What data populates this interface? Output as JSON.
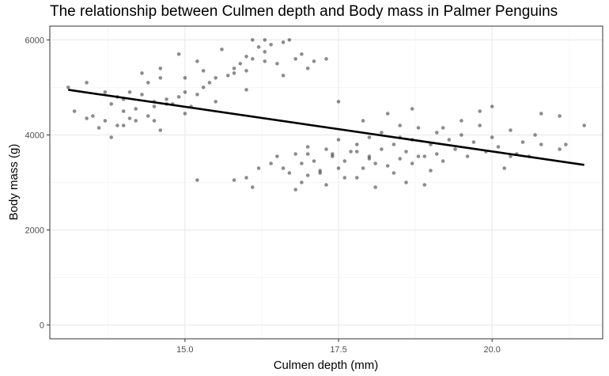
{
  "chart_data": {
    "type": "scatter",
    "title": "The relationship between Culmen depth and Body mass in Palmer Penguins",
    "xlabel": "Culmen depth (mm)",
    "ylabel": "Body mass (g)",
    "xlim": [
      12.8,
      21.8
    ],
    "ylim": [
      -290,
      6290
    ],
    "xticks": [
      15.0,
      17.5,
      20.0
    ],
    "xtick_labels": [
      "15.0",
      "17.5",
      "20.0"
    ],
    "yticks": [
      0,
      2000,
      4000,
      6000
    ],
    "ytick_labels": [
      "0",
      "2000",
      "4000",
      "6000"
    ],
    "grid": true,
    "legend": "none",
    "colors": {
      "point": "#000000",
      "line": "#000000",
      "grid_major": "#ebebeb",
      "grid_minor": "#f5f5f5",
      "panel_border": "#333333"
    },
    "point_alpha": 0.45,
    "trend_line": {
      "x": [
        13.1,
        21.5
      ],
      "y": [
        4950,
        3370
      ]
    },
    "points": [
      [
        13.1,
        5000
      ],
      [
        13.2,
        4500
      ],
      [
        13.4,
        5100
      ],
      [
        13.5,
        4400
      ],
      [
        13.6,
        4150
      ],
      [
        13.7,
        4900
      ],
      [
        13.7,
        4300
      ],
      [
        13.8,
        3950
      ],
      [
        13.8,
        4650
      ],
      [
        13.9,
        4200
      ],
      [
        14.0,
        4750
      ],
      [
        14.0,
        4500
      ],
      [
        14.1,
        4900
      ],
      [
        14.2,
        4300
      ],
      [
        14.2,
        4550
      ],
      [
        14.3,
        4850
      ],
      [
        14.4,
        4400
      ],
      [
        14.5,
        4700
      ],
      [
        14.5,
        4600
      ],
      [
        14.6,
        4100
      ],
      [
        14.7,
        4750
      ],
      [
        14.8,
        4650
      ],
      [
        14.9,
        4800
      ],
      [
        15.0,
        4450
      ],
      [
        15.1,
        4600
      ],
      [
        15.2,
        4850
      ],
      [
        15.0,
        4900
      ],
      [
        15.3,
        5000
      ],
      [
        15.4,
        5100
      ],
      [
        15.5,
        5200
      ],
      [
        15.7,
        5250
      ],
      [
        15.8,
        5400
      ],
      [
        15.9,
        5500
      ],
      [
        16.0,
        5650
      ],
      [
        16.0,
        5350
      ],
      [
        16.1,
        5600
      ],
      [
        16.2,
        5850
      ],
      [
        16.3,
        5750
      ],
      [
        16.4,
        5900
      ],
      [
        16.5,
        5500
      ],
      [
        16.0,
        4950
      ],
      [
        15.5,
        4700
      ],
      [
        14.3,
        5300
      ],
      [
        14.6,
        5400
      ],
      [
        14.9,
        5700
      ],
      [
        15.2,
        5550
      ],
      [
        15.6,
        5800
      ],
      [
        16.1,
        6000
      ],
      [
        16.3,
        6000
      ],
      [
        16.6,
        5250
      ],
      [
        16.9,
        5700
      ],
      [
        17.0,
        5400
      ],
      [
        17.1,
        5550
      ],
      [
        17.3,
        5600
      ],
      [
        16.8,
        5600
      ],
      [
        16.3,
        5550
      ],
      [
        16.6,
        5950
      ],
      [
        15.8,
        5300
      ],
      [
        16.7,
        6000
      ],
      [
        15.0,
        5200
      ],
      [
        14.6,
        5200
      ],
      [
        13.9,
        4800
      ],
      [
        14.5,
        4300
      ],
      [
        14.0,
        4200
      ],
      [
        14.7,
        4650
      ],
      [
        14.1,
        4350
      ],
      [
        15.3,
        5350
      ],
      [
        17.5,
        4700
      ],
      [
        13.4,
        4350
      ],
      [
        14.4,
        5100
      ],
      [
        15.2,
        3050
      ],
      [
        15.8,
        3050
      ],
      [
        16.0,
        3100
      ],
      [
        16.1,
        2900
      ],
      [
        16.2,
        3300
      ],
      [
        16.4,
        3400
      ],
      [
        16.5,
        3550
      ],
      [
        16.6,
        3300
      ],
      [
        16.7,
        3200
      ],
      [
        16.8,
        2850
      ],
      [
        16.8,
        3600
      ],
      [
        16.9,
        3400
      ],
      [
        17.0,
        3150
      ],
      [
        17.0,
        3750
      ],
      [
        17.1,
        3450
      ],
      [
        17.2,
        3250
      ],
      [
        17.3,
        3700
      ],
      [
        17.3,
        2950
      ],
      [
        17.4,
        3550
      ],
      [
        17.5,
        3300
      ],
      [
        17.5,
        3900
      ],
      [
        17.6,
        3450
      ],
      [
        17.7,
        3650
      ],
      [
        17.8,
        3800
      ],
      [
        17.8,
        3100
      ],
      [
        17.9,
        3300
      ],
      [
        18.0,
        3550
      ],
      [
        18.0,
        3950
      ],
      [
        18.1,
        3400
      ],
      [
        18.2,
        3700
      ],
      [
        18.2,
        4050
      ],
      [
        18.3,
        3350
      ],
      [
        18.4,
        3800
      ],
      [
        18.5,
        3500
      ],
      [
        18.5,
        4200
      ],
      [
        18.6,
        3650
      ],
      [
        18.6,
        3000
      ],
      [
        18.7,
        3900
      ],
      [
        18.7,
        3400
      ],
      [
        18.8,
        4150
      ],
      [
        18.9,
        3550
      ],
      [
        19.0,
        3800
      ],
      [
        19.0,
        3250
      ],
      [
        19.1,
        4050
      ],
      [
        19.1,
        3600
      ],
      [
        19.2,
        3450
      ],
      [
        19.3,
        3900
      ],
      [
        19.4,
        3700
      ],
      [
        19.5,
        4000
      ],
      [
        19.6,
        3550
      ],
      [
        19.7,
        3850
      ],
      [
        19.8,
        4200
      ],
      [
        19.9,
        3650
      ],
      [
        20.0,
        3950
      ],
      [
        20.1,
        3750
      ],
      [
        20.2,
        3300
      ],
      [
        20.3,
        4100
      ],
      [
        20.4,
        3600
      ],
      [
        20.5,
        3850
      ],
      [
        20.6,
        3550
      ],
      [
        20.7,
        4000
      ],
      [
        20.8,
        3800
      ],
      [
        21.1,
        3700
      ],
      [
        16.9,
        3000
      ],
      [
        17.2,
        3200
      ],
      [
        17.6,
        3100
      ],
      [
        18.1,
        2900
      ],
      [
        18.4,
        3200
      ],
      [
        18.9,
        2950
      ],
      [
        19.5,
        4300
      ],
      [
        19.8,
        4500
      ],
      [
        20.0,
        4600
      ],
      [
        18.7,
        4550
      ],
      [
        18.3,
        4450
      ],
      [
        17.9,
        4300
      ],
      [
        21.5,
        4200
      ],
      [
        21.1,
        4400
      ],
      [
        21.2,
        3800
      ],
      [
        20.8,
        4450
      ],
      [
        20.3,
        3550
      ],
      [
        19.2,
        4150
      ],
      [
        18.0,
        3500
      ],
      [
        18.8,
        3550
      ],
      [
        17.8,
        3650
      ],
      [
        18.5,
        3950
      ],
      [
        17.0,
        3600
      ],
      [
        17.4,
        3600
      ]
    ]
  }
}
